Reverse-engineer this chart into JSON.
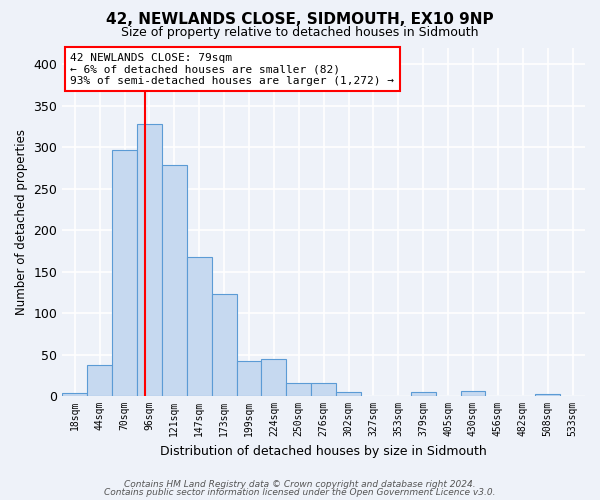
{
  "title": "42, NEWLANDS CLOSE, SIDMOUTH, EX10 9NP",
  "subtitle": "Size of property relative to detached houses in Sidmouth",
  "xlabel": "Distribution of detached houses by size in Sidmouth",
  "ylabel": "Number of detached properties",
  "bar_labels": [
    "18sqm",
    "44sqm",
    "70sqm",
    "96sqm",
    "121sqm",
    "147sqm",
    "173sqm",
    "199sqm",
    "224sqm",
    "250sqm",
    "276sqm",
    "302sqm",
    "327sqm",
    "353sqm",
    "379sqm",
    "405sqm",
    "430sqm",
    "456sqm",
    "482sqm",
    "508sqm",
    "533sqm"
  ],
  "bar_heights": [
    4,
    37,
    296,
    328,
    278,
    168,
    123,
    42,
    45,
    16,
    16,
    5,
    0,
    0,
    5,
    0,
    6,
    0,
    0,
    2,
    0
  ],
  "bar_color": "#c6d9f0",
  "bar_edge_color": "#5b9bd5",
  "ylim": [
    0,
    420
  ],
  "yticks": [
    0,
    50,
    100,
    150,
    200,
    250,
    300,
    350,
    400
  ],
  "annotation_title": "42 NEWLANDS CLOSE: 79sqm",
  "annotation_line1": "← 6% of detached houses are smaller (82)",
  "annotation_line2": "93% of semi-detached houses are larger (1,272) →",
  "vline_x_index": 2.84,
  "footer1": "Contains HM Land Registry data © Crown copyright and database right 2024.",
  "footer2": "Contains public sector information licensed under the Open Government Licence v3.0.",
  "background_color": "#eef2f9",
  "grid_color": "#ffffff"
}
